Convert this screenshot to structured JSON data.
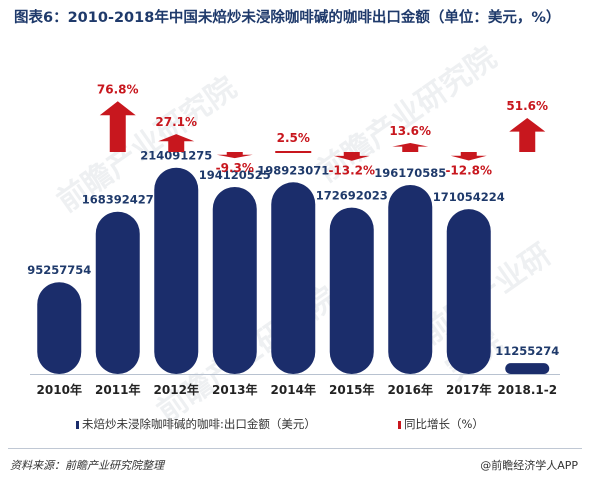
{
  "header": {
    "title": "图表6：2010-2018年中国未焙炒未浸除咖啡碱的咖啡出口金额（单位：美元，%）"
  },
  "legend": {
    "series1": "未焙炒未浸除咖啡碱的咖啡:出口金额（美元）",
    "series2": "同比增长（%）"
  },
  "footer": {
    "source": "资料来源：前瞻产业研究院整理",
    "brand": "@前瞻经济学人APP"
  },
  "watermark": {
    "text": "前瞻产业研究院"
  },
  "colors": {
    "bar": "#1b2d6b",
    "arrow": "#c8171e",
    "bar_label": "#1f3a6b",
    "growth_label": "#c8171e"
  },
  "chart_data": {
    "type": "bar",
    "categories": [
      "2010年",
      "2011年",
      "2012年",
      "2013年",
      "2014年",
      "2015年",
      "2016年",
      "2017年",
      "2018.1-2"
    ],
    "series": [
      {
        "name": "未焙炒未浸除咖啡碱的咖啡:出口金额（美元）",
        "type": "bar",
        "values": [
          95257754,
          168392427,
          214091275,
          194120525,
          198923071,
          172692023,
          196170585,
          171054224,
          11255274
        ],
        "labels": [
          "95257754",
          "168392427",
          "214091275",
          "194120525",
          "198923071",
          "172692023",
          "196170585",
          "171054224",
          "11255274"
        ]
      },
      {
        "name": "同比增长（%）",
        "type": "arrow",
        "values": [
          null,
          76.8,
          27.1,
          -9.3,
          2.5,
          -13.2,
          13.6,
          -12.8,
          51.6
        ],
        "labels": [
          "",
          "76.8%",
          "27.1%",
          "-9.3%",
          "2.5%",
          "-13.2%",
          "13.6%",
          "-12.8%",
          "51.6%"
        ]
      }
    ],
    "ylim": [
      0,
      220000000
    ]
  }
}
